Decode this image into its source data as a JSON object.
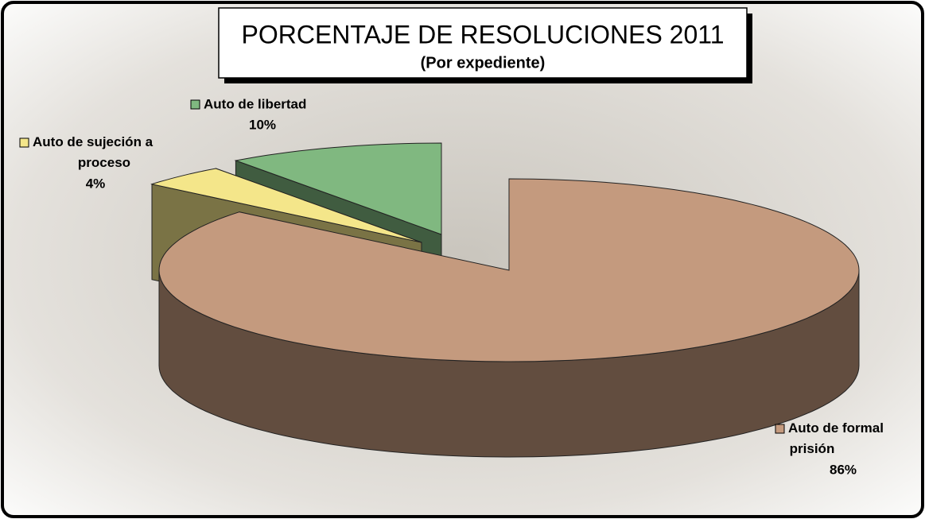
{
  "chart_data": {
    "type": "pie",
    "title": "PORCENTAJE DE RESOLUCIONES 2011",
    "subtitle": "(Por expediente)",
    "categories": [
      "Auto de formal prisión",
      "Auto de sujeción a proceso",
      "Auto de libertad"
    ],
    "values": [
      86,
      4,
      10
    ],
    "value_labels": [
      "86%",
      "4%",
      "10%"
    ],
    "colors": [
      "#c49a7e",
      "#f4e68a",
      "#80b880"
    ]
  }
}
